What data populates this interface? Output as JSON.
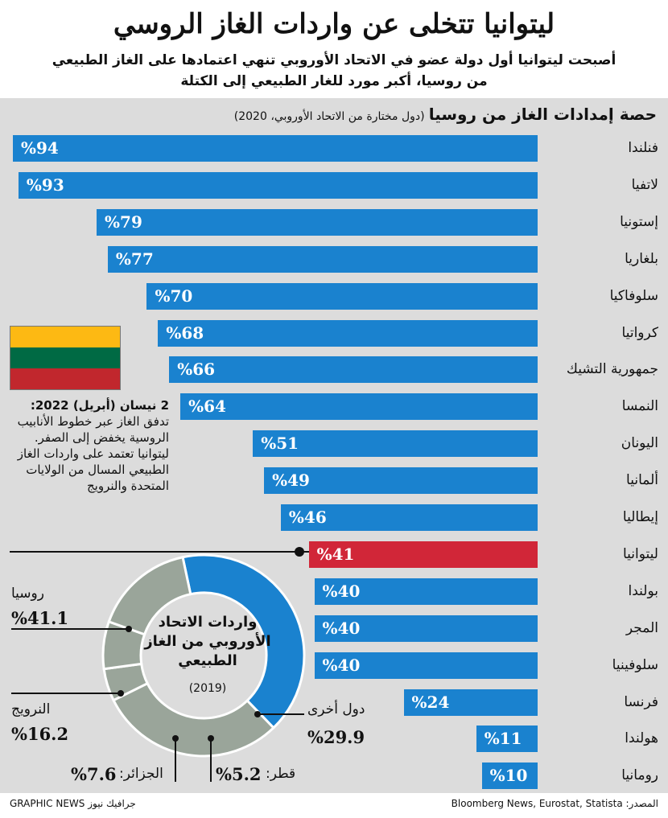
{
  "header": {
    "title": "ليتوانيا تتخلى عن واردات الغاز الروسي",
    "subtitle_line1": "أصبحت ليتوانيا أول دولة عضو في الاتحاد الأوروبي تنهي اعتمادها على الغاز الطبيعي",
    "subtitle_line2": "من روسيا، أكبر مورد للغار الطبيعي إلى الكتلة"
  },
  "chart_data": [
    {
      "type": "bar",
      "title": "حصة إمدادات الغاز من روسيا",
      "subtitle": "(دول مختارة من الاتحاد الأوروبي، 2020)",
      "categories": [
        "فنلندا",
        "لاتفيا",
        "إستونيا",
        "بلغاريا",
        "سلوفاكيا",
        "كرواتيا",
        "جمهورية التشيك",
        "النمسا",
        "اليونان",
        "ألمانيا",
        "إيطاليا",
        "ليتوانيا",
        "بولندا",
        "المجر",
        "سلوفينيا",
        "فرنسا",
        "هولندا",
        "رومانيا"
      ],
      "values": [
        94,
        93,
        79,
        77,
        70,
        68,
        66,
        64,
        51,
        49,
        46,
        41,
        40,
        40,
        40,
        24,
        11,
        10
      ],
      "value_labels": [
        "%94",
        "%93",
        "%79",
        "%77",
        "%70",
        "%68",
        "%66",
        "%64",
        "%51",
        "%49",
        "%46",
        "%41",
        "%40",
        "%40",
        "%40",
        "%24",
        "%11",
        "%10"
      ],
      "highlight": "ليتوانيا",
      "colors": {
        "bar": "#1a82cf",
        "highlight": "#d12638"
      }
    },
    {
      "type": "pie",
      "title": "واردات الاتحاد الأوروبي من الغاز الطبيعي",
      "subtitle": "(2019)",
      "slices": [
        {
          "label": "روسيا",
          "value": 41.1,
          "value_label": "%41.1",
          "color": "#1a82cf"
        },
        {
          "label": "دول أخرى",
          "value": 29.9,
          "value_label": "%29.9",
          "color": "#9aa59a"
        },
        {
          "label": "قطر:",
          "value": 5.2,
          "value_label": "%5.2",
          "color": "#9aa59a"
        },
        {
          "label": "الجزائر:",
          "value": 7.6,
          "value_label": "%7.6",
          "color": "#9aa59a"
        },
        {
          "label": "النرويج",
          "value": 16.2,
          "value_label": "%16.2",
          "color": "#9aa59a"
        }
      ]
    }
  ],
  "annotation": {
    "date": "2 نيسان (أبريل) 2022:",
    "text": "تدفق الغاز عبر خطوط الأنابيب الروسية يخفض إلى الصفر. ليتوانيا تعتمد على واردات الغاز الطبيعي المسال من الولايات المتحدة والنرويج"
  },
  "flag_colors": [
    "#fdb913",
    "#006a44",
    "#c1272d"
  ],
  "footer": {
    "source": "المصدر: Bloomberg News, Eurostat, Statista",
    "credit": "GRAPHIC NEWS جرافيك نيوز"
  }
}
